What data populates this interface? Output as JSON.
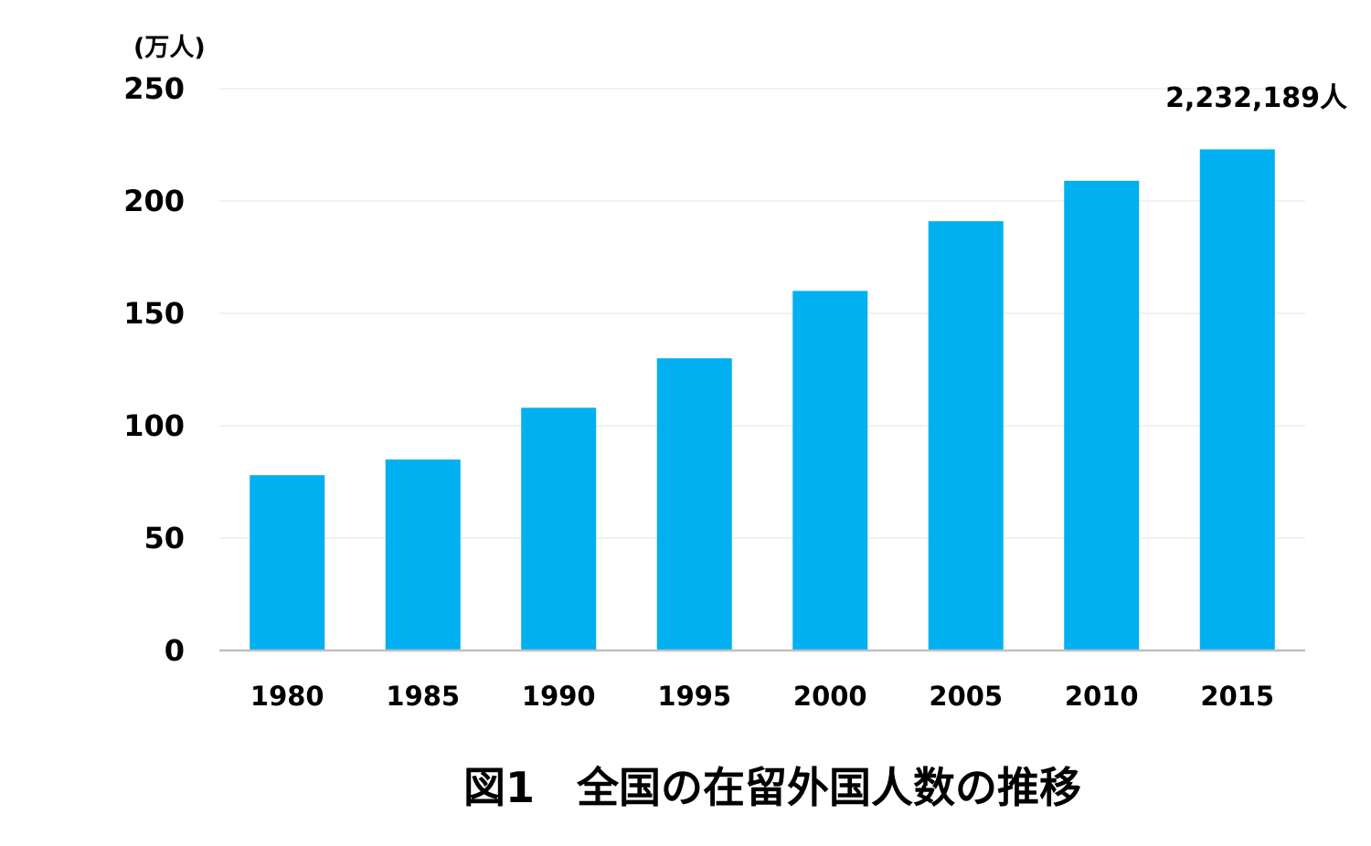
{
  "chart_data": {
    "type": "bar",
    "categories": [
      "1980",
      "1985",
      "1990",
      "1995",
      "2000",
      "2005",
      "2010",
      "2015"
    ],
    "values": [
      78,
      85,
      108,
      130,
      160,
      191,
      209,
      223
    ],
    "ylabel": "(万人)",
    "yticks": [
      "0",
      "50",
      "100",
      "150",
      "200",
      "250"
    ],
    "ylim": [
      0,
      250
    ],
    "grid": true,
    "bar_color": "#00B0F0",
    "annotation": "2,232,189人",
    "caption": "図1　全国の在留外国人数の推移"
  }
}
